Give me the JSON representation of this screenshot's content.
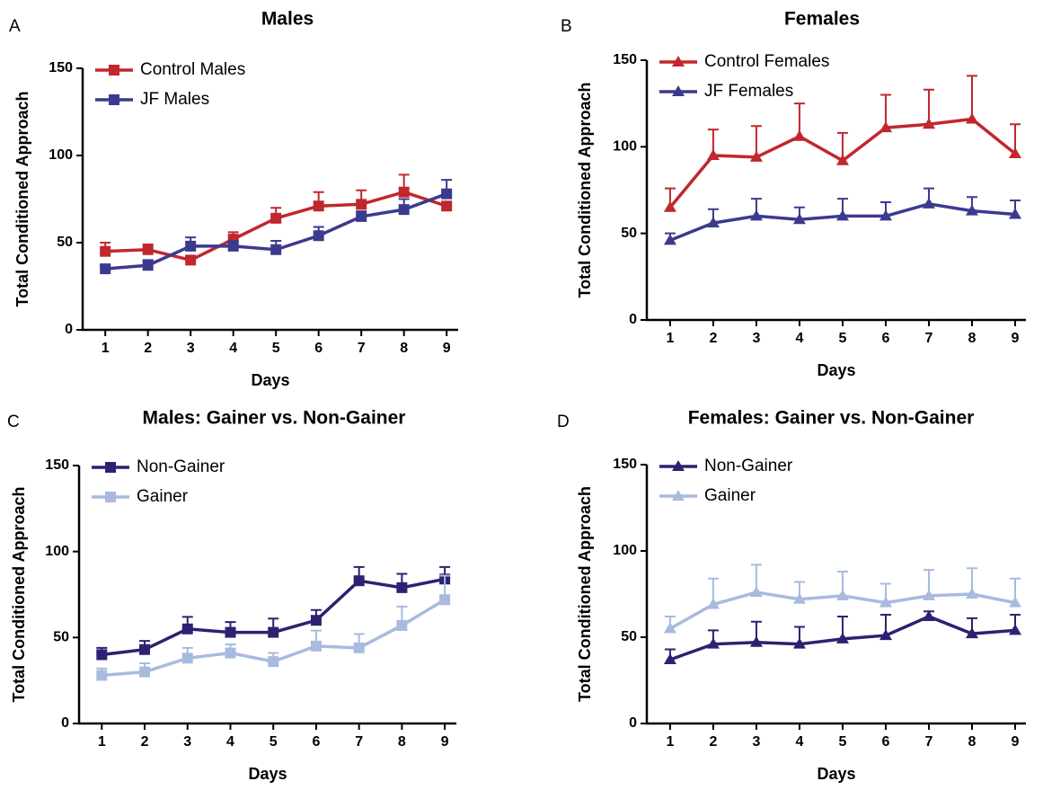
{
  "chart_data": [
    {
      "type": "line",
      "panel_label": "A",
      "title": "Males",
      "ylabel": "Total Conditioned Approach",
      "xlabel": "Days",
      "x": [
        1,
        2,
        3,
        4,
        5,
        6,
        7,
        8,
        9
      ],
      "xlim": [
        0.47,
        9.27
      ],
      "xticks": [
        1,
        2,
        3,
        4,
        5,
        6,
        7,
        8,
        9
      ],
      "ylim": [
        0,
        150
      ],
      "yticks": [
        0,
        50,
        100,
        150
      ],
      "marker": "square",
      "series": [
        {
          "name": "Control Males",
          "color": "#c1272d",
          "values": [
            45,
            46,
            40,
            52,
            64,
            71,
            72,
            79,
            71
          ],
          "errors": [
            5,
            3,
            2,
            4,
            6,
            8,
            8,
            10,
            2
          ]
        },
        {
          "name": "JF Males",
          "color": "#3c3a8e",
          "values": [
            35,
            37,
            48,
            48,
            46,
            54,
            65,
            69,
            78
          ],
          "errors": [
            2,
            3,
            5,
            3,
            5,
            5,
            3,
            6,
            8
          ]
        }
      ]
    },
    {
      "type": "line",
      "panel_label": "B",
      "title": "Females",
      "ylabel": "Total Conditioned Approach",
      "xlabel": "Days",
      "x": [
        1,
        2,
        3,
        4,
        5,
        6,
        7,
        8,
        9
      ],
      "xlim": [
        0.46,
        9.25
      ],
      "xticks": [
        1,
        2,
        3,
        4,
        5,
        6,
        7,
        8,
        9
      ],
      "ylim": [
        0,
        150
      ],
      "yticks": [
        0,
        50,
        100,
        150
      ],
      "marker": "triangle",
      "series": [
        {
          "name": "Control Females",
          "color": "#c1272d",
          "values": [
            65,
            95,
            94,
            106,
            92,
            111,
            113,
            116,
            96
          ],
          "errors": [
            11,
            15,
            18,
            19,
            16,
            19,
            20,
            25,
            17
          ]
        },
        {
          "name": "JF Females",
          "color": "#3c3a8e",
          "values": [
            46,
            56,
            60,
            58,
            60,
            60,
            67,
            63,
            61
          ],
          "errors": [
            4,
            8,
            10,
            7,
            10,
            8,
            9,
            8,
            8
          ]
        }
      ]
    },
    {
      "type": "line",
      "panel_label": "C",
      "title": "Males: Gainer vs. Non-Gainer",
      "ylabel": "Total Conditioned Approach",
      "xlabel": "Days",
      "x": [
        1,
        2,
        3,
        4,
        5,
        6,
        7,
        8,
        9
      ],
      "xlim": [
        0.47,
        9.27
      ],
      "xticks": [
        1,
        2,
        3,
        4,
        5,
        6,
        7,
        8,
        9
      ],
      "ylim": [
        0,
        150
      ],
      "yticks": [
        0,
        50,
        100,
        150
      ],
      "marker": "square",
      "series": [
        {
          "name": "Non-Gainer",
          "color": "#2b2271",
          "values": [
            40,
            43,
            55,
            53,
            53,
            60,
            83,
            79,
            84
          ],
          "errors": [
            4,
            5,
            7,
            6,
            8,
            6,
            8,
            8,
            7
          ]
        },
        {
          "name": "Gainer",
          "color": "#a9badf",
          "values": [
            28,
            30,
            38,
            41,
            36,
            45,
            44,
            57,
            72
          ],
          "errors": [
            4,
            5,
            6,
            5,
            5,
            9,
            8,
            11,
            14
          ]
        }
      ]
    },
    {
      "type": "line",
      "panel_label": "D",
      "title": "Females: Gainer vs. Non-Gainer",
      "ylabel": "Total Conditioned Approach",
      "xlabel": "Days",
      "x": [
        1,
        2,
        3,
        4,
        5,
        6,
        7,
        8,
        9
      ],
      "xlim": [
        0.46,
        9.25
      ],
      "xticks": [
        1,
        2,
        3,
        4,
        5,
        6,
        7,
        8,
        9
      ],
      "ylim": [
        0,
        150
      ],
      "yticks": [
        0,
        50,
        100,
        150
      ],
      "marker": "triangle",
      "series": [
        {
          "name": "Non-Gainer",
          "color": "#2b2271",
          "values": [
            37,
            46,
            47,
            46,
            49,
            51,
            62,
            52,
            54
          ],
          "errors": [
            6,
            8,
            12,
            10,
            13,
            12,
            3,
            9,
            9
          ]
        },
        {
          "name": "Gainer",
          "color": "#a9badf",
          "values": [
            55,
            69,
            76,
            72,
            74,
            70,
            74,
            75,
            70
          ],
          "errors": [
            7,
            15,
            16,
            10,
            14,
            11,
            15,
            15,
            14
          ]
        }
      ]
    }
  ]
}
